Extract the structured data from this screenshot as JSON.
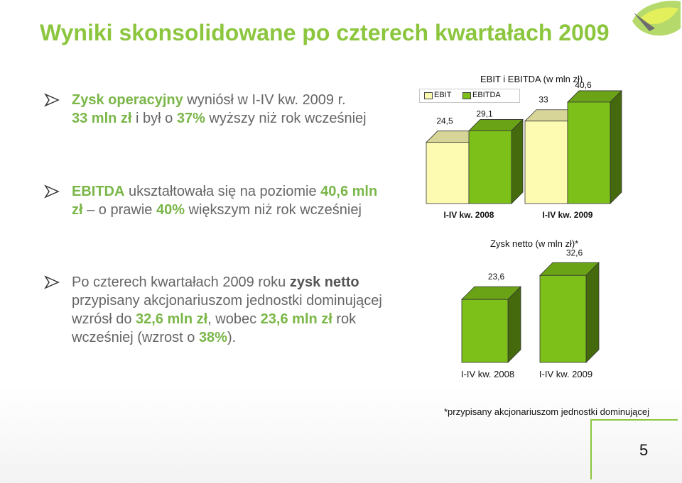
{
  "title": "Wyniki skonsolidowane po czterech kwartałach 2009",
  "bullets": {
    "b1": {
      "p1": "Zysk operacyjny",
      "p2": " wyniósł w I-IV kw. 2009 r.",
      "p3": "33 mln zł",
      "p4": " i był o ",
      "p5": "37%",
      "p6": " wyższy niż rok wcześniej"
    },
    "b2": {
      "p1": "EBITDA",
      "p2": " ukształtowała się na poziomie ",
      "p3": "40,6 mln zł",
      "p4": " – o prawie ",
      "p5": "40%",
      "p6": " większym niż rok wcześniej"
    },
    "b3": {
      "p1": "Po czterech kwartałach 2009 roku ",
      "p2": "zysk netto",
      "p3": " przypisany akcjonariuszom jednostki dominującej wzrósł do ",
      "p4": "32,6 mln zł",
      "p5": ", wobec ",
      "p6": "23,6 mln zł",
      "p7": " rok wcześniej (wzrost o ",
      "p8": "38%",
      "p9": ")."
    }
  },
  "footnote": "*przypisany akcjonariuszom jednostki dominującej",
  "page_number": "5",
  "colors": {
    "title_green": "#8cc63f",
    "ebit": "#fdfbb2",
    "ebitda": "#7dc01a",
    "text_gray": "#555555"
  },
  "icons": {
    "bullet": "arrow-bullet-icon",
    "logo": "green-leaf-logo-icon"
  },
  "chart_data": [
    {
      "type": "bar",
      "title": "EBIT i EBITDA (w mln zł)",
      "categories": [
        "I-IV kw. 2008",
        "I-IV kw. 2009"
      ],
      "series": [
        {
          "name": "EBIT",
          "values": [
            24.5,
            33
          ],
          "labels": [
            "24,5",
            "33"
          ],
          "color": "#fdfbb2"
        },
        {
          "name": "EBITDA",
          "values": [
            29.1,
            40.6
          ],
          "labels": [
            "29,1",
            "40,6"
          ],
          "color": "#7dc01a"
        }
      ],
      "ylim": [
        0,
        42
      ],
      "legend": "top-left",
      "grid": false
    },
    {
      "type": "bar",
      "title": "Zysk netto (w mln zł)*",
      "categories": [
        "I-IV kw. 2008",
        "I-IV kw. 2009"
      ],
      "series": [
        {
          "values": [
            23.6,
            32.6
          ],
          "labels": [
            "23,6",
            "32,6"
          ],
          "color": "#7dc01a"
        }
      ],
      "ylim": [
        0,
        34
      ],
      "grid": false
    }
  ]
}
